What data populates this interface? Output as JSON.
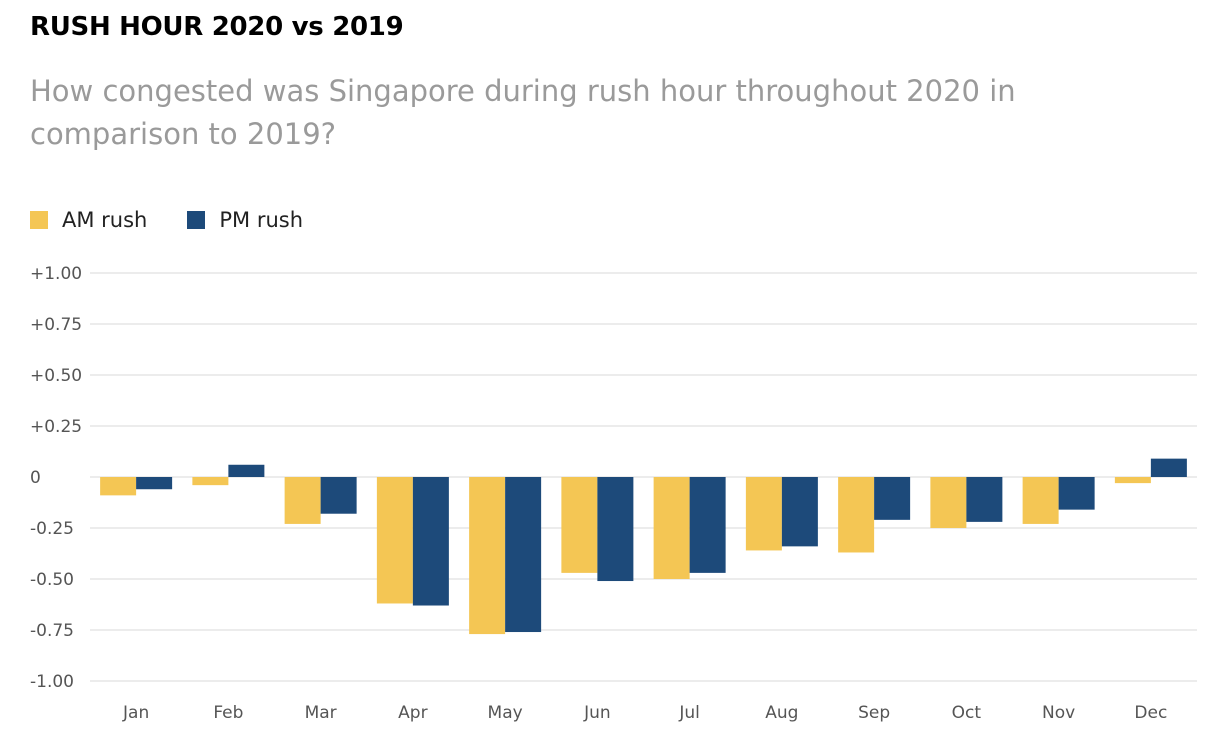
{
  "title": "RUSH HOUR 2020 vs 2019",
  "subtitle": "How congested was Singapore during rush hour throughout 2020 in comparison to 2019?",
  "colors": {
    "am": "#f4c654",
    "pm": "#1d4a7a",
    "grid": "#e6e6e6"
  },
  "chart_data": {
    "type": "bar",
    "categories": [
      "Jan",
      "Feb",
      "Mar",
      "Apr",
      "May",
      "Jun",
      "Jul",
      "Aug",
      "Sep",
      "Oct",
      "Nov",
      "Dec"
    ],
    "series": [
      {
        "name": "AM rush",
        "values": [
          -0.09,
          -0.04,
          -0.23,
          -0.62,
          -0.77,
          -0.47,
          -0.5,
          -0.36,
          -0.37,
          -0.25,
          -0.23,
          -0.03
        ]
      },
      {
        "name": "PM rush",
        "values": [
          -0.06,
          0.06,
          -0.18,
          -0.63,
          -0.76,
          -0.51,
          -0.47,
          -0.34,
          -0.21,
          -0.22,
          -0.16,
          0.09
        ]
      }
    ],
    "ylim": [
      -1.0,
      1.0
    ],
    "yticks": [
      1.0,
      0.75,
      0.5,
      0.25,
      0,
      -0.25,
      -0.5,
      -0.75,
      -1.0
    ],
    "ytick_labels": [
      "+1.00",
      "+0.75",
      "+0.50",
      "+0.25",
      "0",
      "-0.25",
      "-0.50",
      "-0.75",
      "-1.00"
    ],
    "grid": true,
    "legend": "top-left"
  }
}
